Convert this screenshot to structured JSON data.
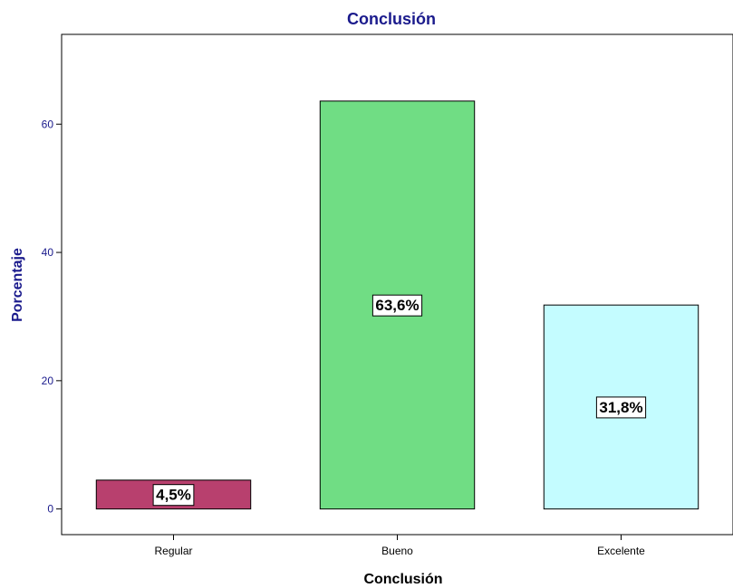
{
  "chart_data": {
    "type": "bar",
    "title": "Conclusión",
    "xlabel": "Conclusión",
    "ylabel": "Porcentaje",
    "categories": [
      "Regular",
      "Bueno",
      "Excelente"
    ],
    "values": [
      4.5,
      63.6,
      31.8
    ],
    "data_labels": [
      "4,5%",
      "63,6%",
      "31,8%"
    ],
    "colors": [
      "#b8406e",
      "#70dd84",
      "#c4fcff"
    ],
    "ylim": [
      -4,
      74
    ],
    "yticks": [
      0,
      20,
      40,
      60
    ],
    "grid": false,
    "legend": "none"
  }
}
